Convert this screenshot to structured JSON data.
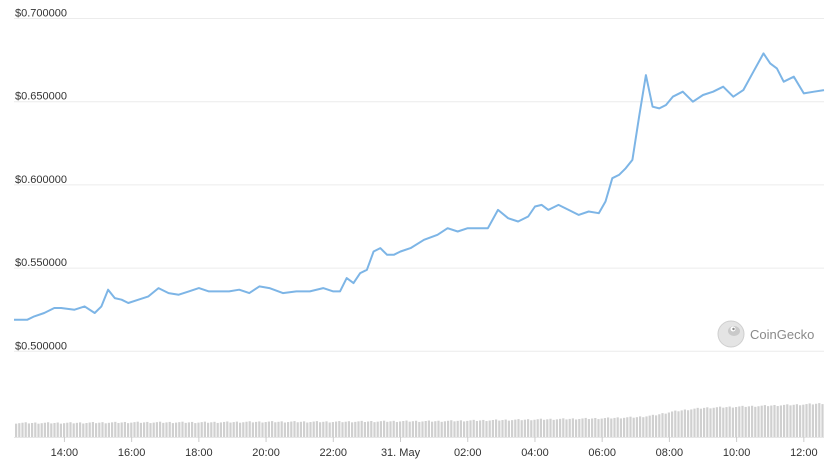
{
  "watermark": {
    "text": "CoinGecko",
    "icon": "gecko-logo-icon"
  },
  "colors": {
    "line": "#7db5e6",
    "volume": "#d0d0d0",
    "grid": "#ececec",
    "text": "#333333"
  },
  "chart_data": {
    "type": "line",
    "title": "",
    "xlabel": "",
    "ylabel": "",
    "ylim": [
      0.49,
      0.705
    ],
    "y_ticks": [
      "$0.700000",
      "$0.650000",
      "$0.600000",
      "$0.550000",
      "$0.500000"
    ],
    "y_tick_values": [
      0.7,
      0.65,
      0.6,
      0.55,
      0.5
    ],
    "x_ticks": [
      "14:00",
      "16:00",
      "18:00",
      "20:00",
      "22:00",
      "31. May",
      "02:00",
      "04:00",
      "06:00",
      "08:00",
      "10:00",
      "12:00"
    ],
    "x_tick_hours": [
      14,
      16,
      18,
      20,
      22,
      24,
      26,
      28,
      30,
      32,
      34,
      36
    ],
    "grid": true,
    "series": [
      {
        "kind": "price",
        "x_hours": [
          12.5,
          12.7,
          12.9,
          13.1,
          13.4,
          13.7,
          13.9,
          14.3,
          14.6,
          14.9,
          15.1,
          15.3,
          15.5,
          15.7,
          15.9,
          16.2,
          16.5,
          16.8,
          17.1,
          17.4,
          17.7,
          18.0,
          18.3,
          18.6,
          18.9,
          19.2,
          19.5,
          19.8,
          20.1,
          20.5,
          20.9,
          21.3,
          21.7,
          22.0,
          22.2,
          22.4,
          22.6,
          22.8,
          23.0,
          23.2,
          23.4,
          23.6,
          23.8,
          24.0,
          24.3,
          24.7,
          25.1,
          25.4,
          25.7,
          26.0,
          26.3,
          26.6,
          26.9,
          27.2,
          27.5,
          27.8,
          28.0,
          28.2,
          28.4,
          28.7,
          29.0,
          29.3,
          29.6,
          29.9,
          30.1,
          30.3,
          30.5,
          30.7,
          30.9,
          31.1,
          31.3,
          31.5,
          31.7,
          31.9,
          32.1,
          32.4,
          32.7,
          33.0,
          33.3,
          33.6,
          33.9,
          34.2,
          34.5,
          34.8,
          35.0,
          35.2,
          35.4,
          35.7,
          36.0,
          36.3,
          36.6
        ],
        "y": [
          0.519,
          0.519,
          0.519,
          0.521,
          0.523,
          0.526,
          0.526,
          0.525,
          0.527,
          0.523,
          0.527,
          0.537,
          0.532,
          0.531,
          0.529,
          0.531,
          0.533,
          0.538,
          0.535,
          0.534,
          0.536,
          0.538,
          0.536,
          0.536,
          0.536,
          0.537,
          0.535,
          0.539,
          0.538,
          0.535,
          0.536,
          0.536,
          0.538,
          0.536,
          0.536,
          0.544,
          0.541,
          0.547,
          0.549,
          0.56,
          0.562,
          0.558,
          0.558,
          0.56,
          0.562,
          0.567,
          0.57,
          0.574,
          0.572,
          0.574,
          0.574,
          0.574,
          0.585,
          0.58,
          0.578,
          0.581,
          0.587,
          0.588,
          0.585,
          0.588,
          0.585,
          0.582,
          0.584,
          0.583,
          0.59,
          0.604,
          0.606,
          0.61,
          0.615,
          0.641,
          0.666,
          0.647,
          0.646,
          0.648,
          0.653,
          0.656,
          0.65,
          0.654,
          0.656,
          0.659,
          0.653,
          0.657,
          0.668,
          0.679,
          0.673,
          0.67,
          0.662,
          0.665,
          0.655,
          0.656,
          0.657
        ],
        "x_range": [
          12.5,
          36.6
        ]
      },
      {
        "kind": "volume",
        "levels": [
          0.23,
          0.23,
          0.24,
          0.24,
          0.25,
          0.25,
          0.26,
          0.26,
          0.27,
          0.28,
          0.29,
          0.3,
          0.31,
          0.33,
          0.36,
          0.42,
          0.46,
          0.49,
          0.51,
          0.53,
          0.55,
          0.57
        ],
        "level_hours": [
          12.5,
          14,
          16,
          18,
          20,
          22,
          24,
          25,
          26,
          27,
          28,
          29,
          30,
          31,
          31.5,
          32,
          32.5,
          33,
          34,
          35,
          36,
          36.6
        ]
      }
    ]
  }
}
